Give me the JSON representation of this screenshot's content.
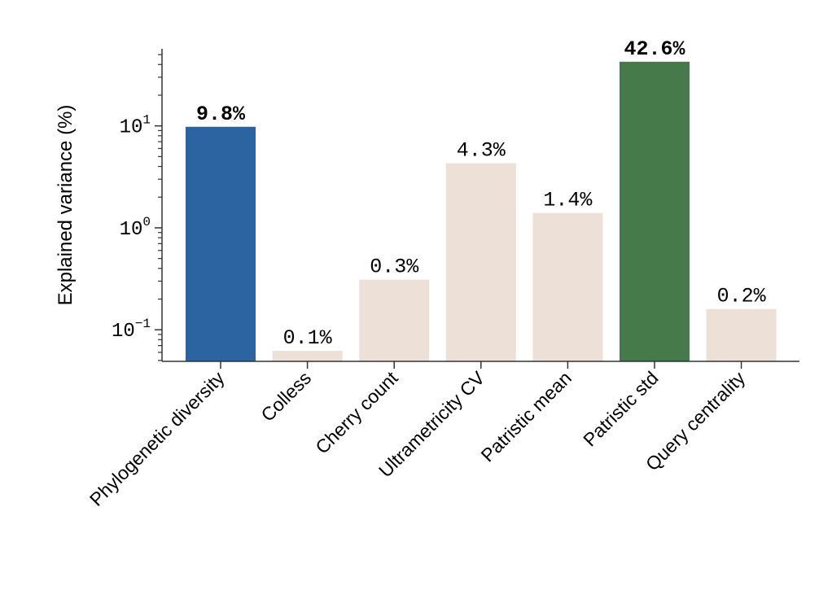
{
  "chart_data": {
    "type": "bar",
    "ylabel": "Explained variance (%)",
    "xlabel": "",
    "yscale": "log",
    "ylim": [
      0.049,
      57
    ],
    "grid": false,
    "categories": [
      "Phylogenetic diversity",
      "Colless",
      "Cherry count",
      "Ultrametricity CV",
      "Patristic mean",
      "Patristic std",
      "Query centrality"
    ],
    "values": [
      9.8,
      0.062,
      0.31,
      4.3,
      1.4,
      42.6,
      0.16
    ],
    "data_labels": [
      "9.8%",
      "0.1%",
      "0.3%",
      "4.3%",
      "1.4%",
      "42.6%",
      "0.2%"
    ],
    "highlighted": [
      true,
      false,
      false,
      false,
      false,
      true,
      false
    ],
    "colors": [
      "#2b64a0",
      "#ede0d6",
      "#ede0d6",
      "#ede0d6",
      "#ede0d6",
      "#477a4b",
      "#ede0d6"
    ],
    "yticks": [
      {
        "value": 0.1,
        "base": "10",
        "exp": "−1"
      },
      {
        "value": 1,
        "base": "10",
        "exp": "0"
      },
      {
        "value": 10,
        "base": "10",
        "exp": "1"
      }
    ]
  }
}
